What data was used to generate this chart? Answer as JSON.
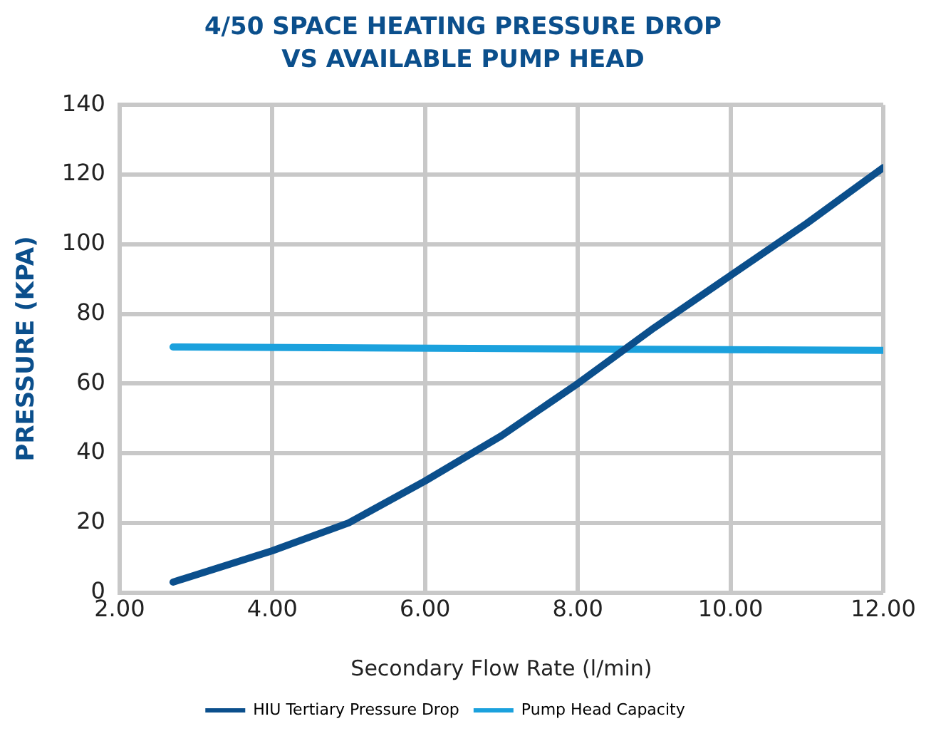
{
  "chart_data": {
    "type": "line",
    "title": "4/50 SPACE HEATING PRESSURE DROP VS AVAILABLE PUMP HEAD",
    "xlabel": "Secondary Flow Rate (l/min)",
    "ylabel": "PRESSURE (KPA)",
    "series": [
      {
        "name": "HIU Tertiary Pressure Drop",
        "color": "#0b4f8c",
        "x": [
          2.7,
          4,
          5,
          6,
          7,
          8,
          9,
          10,
          11,
          12
        ],
        "values": [
          3,
          12,
          20,
          32,
          45,
          60,
          76,
          91,
          106,
          122
        ]
      },
      {
        "name": "Pump Head Capacity",
        "color": "#1ba1dd",
        "x": [
          2.7,
          12
        ],
        "values": [
          70.5,
          69.5
        ]
      }
    ],
    "xlim": [
      2,
      12
    ],
    "xticks": [
      {
        "value": 2,
        "label": "2.00"
      },
      {
        "value": 4,
        "label": "4.00"
      },
      {
        "value": 6,
        "label": "6.00"
      },
      {
        "value": 8,
        "label": "8.00"
      },
      {
        "value": 10,
        "label": "10.00"
      },
      {
        "value": 12,
        "label": "12.00"
      }
    ],
    "ylim": [
      0,
      140
    ],
    "yticks": [
      0,
      20,
      40,
      60,
      80,
      100,
      120,
      140
    ],
    "grid": true,
    "legend": "bottom",
    "marker": "none",
    "line_style": "solid"
  }
}
